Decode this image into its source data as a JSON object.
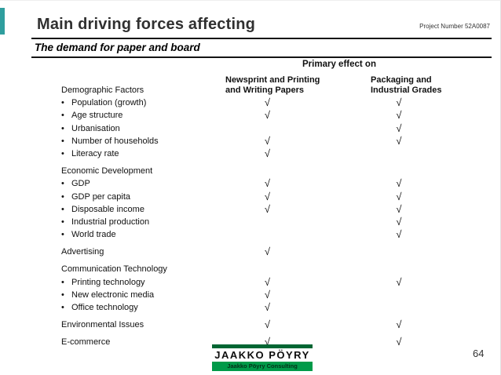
{
  "header": {
    "title": "Main driving forces affecting",
    "project_number": "Project Number 52A0087",
    "subtitle": "The demand for paper and board"
  },
  "table": {
    "primary_header": "Primary effect on",
    "col1_line1": "Newsprint and Printing",
    "col1_line2": "and Writing Papers",
    "col2_line1": "Packaging and",
    "col2_line2": "Industrial Grades",
    "check_symbol": "√",
    "bullet": "•",
    "rows": [
      {
        "type": "group",
        "label": "Demographic Factors",
        "c1": false,
        "c2": false,
        "gap": false
      },
      {
        "type": "item",
        "label": "Population (growth)",
        "c1": true,
        "c2": true,
        "gap": false
      },
      {
        "type": "item",
        "label": "Age structure",
        "c1": true,
        "c2": true,
        "gap": false
      },
      {
        "type": "item",
        "label": "Urbanisation",
        "c1": false,
        "c2": true,
        "gap": false
      },
      {
        "type": "item",
        "label": "Number of households",
        "c1": true,
        "c2": true,
        "gap": false
      },
      {
        "type": "item",
        "label": "Literacy rate",
        "c1": true,
        "c2": false,
        "gap": false
      },
      {
        "type": "group",
        "label": "Economic Development",
        "c1": false,
        "c2": false,
        "gap": true
      },
      {
        "type": "item",
        "label": "GDP",
        "c1": true,
        "c2": true,
        "gap": false
      },
      {
        "type": "item",
        "label": "GDP per capita",
        "c1": true,
        "c2": true,
        "gap": false
      },
      {
        "type": "item",
        "label": "Disposable income",
        "c1": true,
        "c2": true,
        "gap": false
      },
      {
        "type": "item",
        "label": "Industrial production",
        "c1": false,
        "c2": true,
        "gap": false
      },
      {
        "type": "item",
        "label": "World trade",
        "c1": false,
        "c2": true,
        "gap": false
      },
      {
        "type": "single",
        "label": "Advertising",
        "c1": true,
        "c2": false,
        "gap": true
      },
      {
        "type": "group",
        "label": "Communication Technology",
        "c1": false,
        "c2": false,
        "gap": true
      },
      {
        "type": "item",
        "label": "Printing technology",
        "c1": true,
        "c2": true,
        "gap": false
      },
      {
        "type": "item",
        "label": "New electronic media",
        "c1": true,
        "c2": false,
        "gap": false
      },
      {
        "type": "item",
        "label": "Office technology",
        "c1": true,
        "c2": false,
        "gap": false
      },
      {
        "type": "single",
        "label": "Environmental Issues",
        "c1": true,
        "c2": true,
        "gap": true
      },
      {
        "type": "single",
        "label": "E-commerce",
        "c1": true,
        "c2": true,
        "gap": true
      }
    ]
  },
  "footer": {
    "page_number": "64"
  },
  "logo": {
    "wordmark": "JAAKKO PÖYRY",
    "tagline": "Jaakko Pöyry Consulting",
    "green_dark": "#006633",
    "green": "#009a49",
    "accent_teal": "#2f9e9e"
  }
}
